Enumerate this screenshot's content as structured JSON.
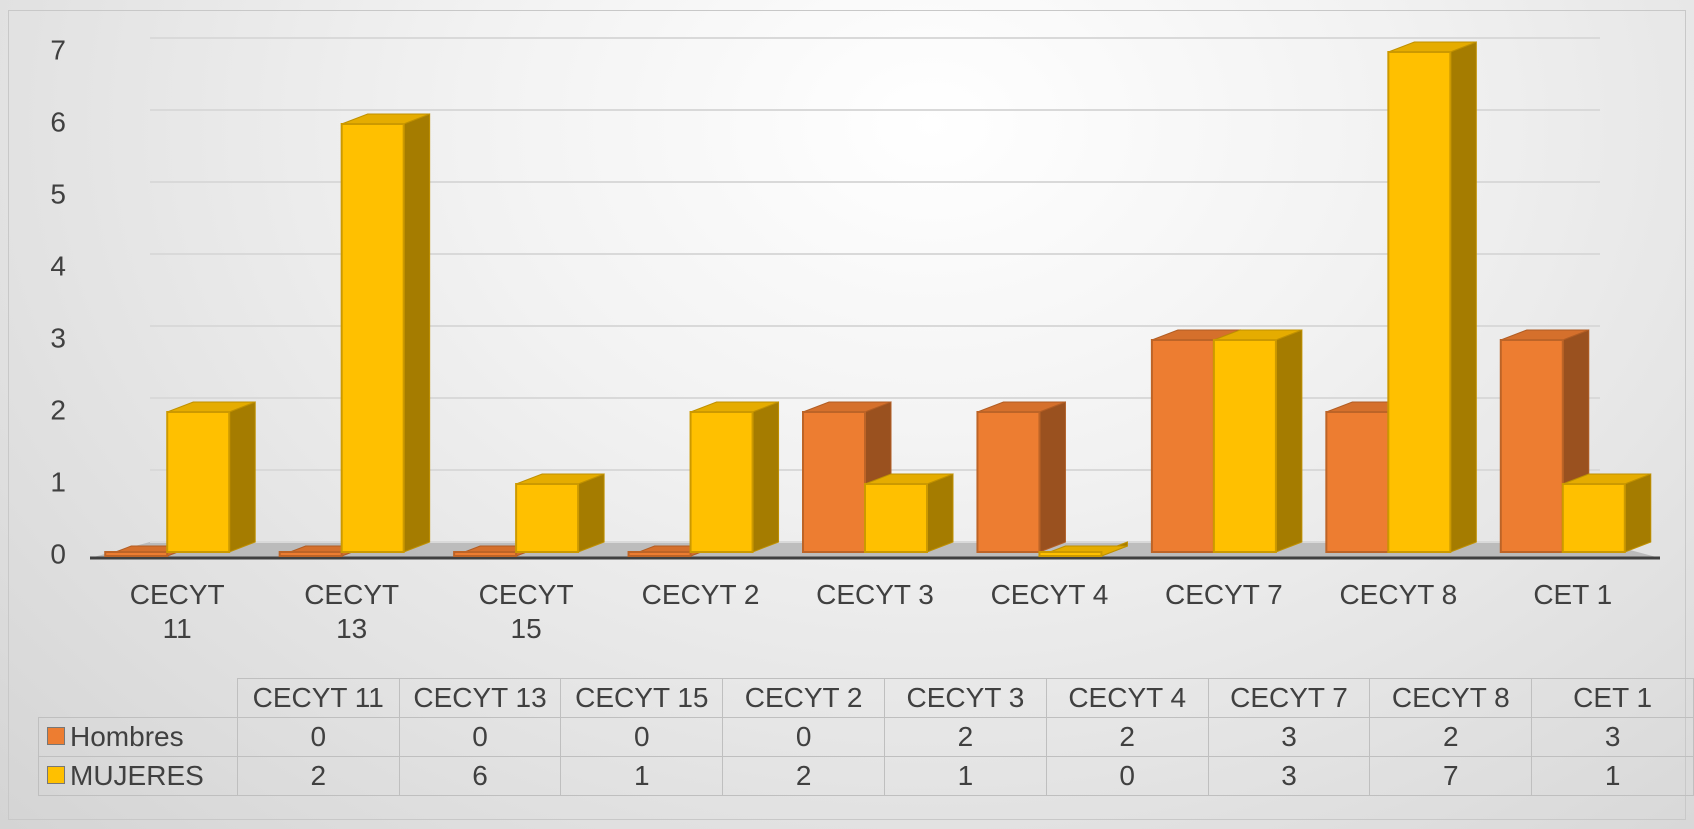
{
  "chart_data": {
    "type": "bar3d",
    "categories": [
      "CECYT 11",
      "CECYT 13",
      "CECYT 15",
      "CECYT 2",
      "CECYT 3",
      "CECYT 4",
      "CECYT 7",
      "CECYT 8",
      "CET 1"
    ],
    "series": [
      {
        "name": "Hombres",
        "color": "#ed7d31",
        "values": [
          0,
          0,
          0,
          0,
          2,
          2,
          3,
          2,
          3
        ]
      },
      {
        "name": "MUJERES",
        "color": "#ffc000",
        "values": [
          2,
          6,
          1,
          2,
          1,
          0,
          3,
          7,
          1
        ]
      }
    ],
    "ylim": [
      0,
      7
    ],
    "yticks": [
      0,
      1,
      2,
      3,
      4,
      5,
      6,
      7
    ],
    "grid": true
  }
}
